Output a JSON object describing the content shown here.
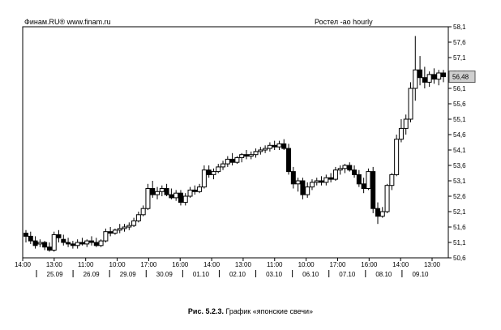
{
  "header": {
    "source": "Финам.RU® www.finam.ru",
    "title": "Ростел -ао hourly"
  },
  "caption": {
    "number": "Рис. 5.2.3.",
    "text": "График «японские свечи»"
  },
  "chart_data": {
    "type": "candlestick",
    "title": "Ростел -ао hourly",
    "ylim": [
      50.6,
      58.1
    ],
    "y_ticks": [
      "58,1",
      "57,6",
      "57,1",
      "56,6",
      "56,1",
      "55,6",
      "55,1",
      "54,6",
      "54,1",
      "53,6",
      "53,1",
      "52,6",
      "52,1",
      "51,6",
      "51,1",
      "50,6"
    ],
    "last_price_label": "56,48",
    "x_time_labels": [
      "14:00",
      "13:00",
      "11:00",
      "10:00",
      "17:00",
      "16:00",
      "14:00",
      "13:00",
      "11:00",
      "10:00",
      "17:00",
      "16:00",
      "14:00",
      "13:00"
    ],
    "x_date_labels": [
      "25.09",
      "26.09",
      "29.09",
      "30.09",
      "01.10",
      "02.10",
      "03.10",
      "06.10",
      "07.10",
      "08.10",
      "09.10"
    ],
    "candles": [
      {
        "o": 51.4,
        "h": 51.5,
        "l": 51.1,
        "c": 51.3
      },
      {
        "o": 51.3,
        "h": 51.45,
        "l": 51.05,
        "c": 51.15
      },
      {
        "o": 51.15,
        "h": 51.3,
        "l": 50.9,
        "c": 51.0
      },
      {
        "o": 51.05,
        "h": 51.2,
        "l": 50.95,
        "c": 51.1
      },
      {
        "o": 51.1,
        "h": 51.15,
        "l": 50.85,
        "c": 50.95
      },
      {
        "o": 50.95,
        "h": 51.1,
        "l": 50.8,
        "c": 50.85
      },
      {
        "o": 50.85,
        "h": 51.45,
        "l": 50.8,
        "c": 51.35
      },
      {
        "o": 51.35,
        "h": 51.5,
        "l": 51.1,
        "c": 51.25
      },
      {
        "o": 51.2,
        "h": 51.35,
        "l": 51.0,
        "c": 51.1
      },
      {
        "o": 51.1,
        "h": 51.25,
        "l": 50.95,
        "c": 51.05
      },
      {
        "o": 51.05,
        "h": 51.15,
        "l": 50.9,
        "c": 51.0
      },
      {
        "o": 51.0,
        "h": 51.2,
        "l": 50.9,
        "c": 51.1
      },
      {
        "o": 51.1,
        "h": 51.25,
        "l": 51.0,
        "c": 51.05
      },
      {
        "o": 51.05,
        "h": 51.2,
        "l": 50.95,
        "c": 51.15
      },
      {
        "o": 51.15,
        "h": 51.3,
        "l": 51.0,
        "c": 51.1
      },
      {
        "o": 51.1,
        "h": 51.25,
        "l": 50.95,
        "c": 51.0
      },
      {
        "o": 51.0,
        "h": 51.2,
        "l": 50.95,
        "c": 51.15
      },
      {
        "o": 51.15,
        "h": 51.55,
        "l": 51.1,
        "c": 51.45
      },
      {
        "o": 51.45,
        "h": 51.6,
        "l": 51.3,
        "c": 51.4
      },
      {
        "o": 51.4,
        "h": 51.55,
        "l": 51.35,
        "c": 51.5
      },
      {
        "o": 51.5,
        "h": 51.7,
        "l": 51.4,
        "c": 51.55
      },
      {
        "o": 51.55,
        "h": 51.7,
        "l": 51.45,
        "c": 51.6
      },
      {
        "o": 51.6,
        "h": 51.75,
        "l": 51.5,
        "c": 51.65
      },
      {
        "o": 51.65,
        "h": 51.9,
        "l": 51.6,
        "c": 51.8
      },
      {
        "o": 51.8,
        "h": 52.1,
        "l": 51.75,
        "c": 52.0
      },
      {
        "o": 52.0,
        "h": 52.3,
        "l": 51.95,
        "c": 52.2
      },
      {
        "o": 52.2,
        "h": 53.0,
        "l": 52.15,
        "c": 52.85
      },
      {
        "o": 52.85,
        "h": 53.1,
        "l": 52.55,
        "c": 52.65
      },
      {
        "o": 52.65,
        "h": 52.9,
        "l": 52.5,
        "c": 52.75
      },
      {
        "o": 52.75,
        "h": 52.95,
        "l": 52.6,
        "c": 52.85
      },
      {
        "o": 52.85,
        "h": 53.0,
        "l": 52.6,
        "c": 52.65
      },
      {
        "o": 52.65,
        "h": 52.85,
        "l": 52.5,
        "c": 52.55
      },
      {
        "o": 52.55,
        "h": 52.8,
        "l": 52.45,
        "c": 52.7
      },
      {
        "o": 52.7,
        "h": 52.8,
        "l": 52.3,
        "c": 52.4
      },
      {
        "o": 52.4,
        "h": 52.7,
        "l": 52.3,
        "c": 52.6
      },
      {
        "o": 52.6,
        "h": 52.9,
        "l": 52.55,
        "c": 52.8
      },
      {
        "o": 52.8,
        "h": 52.95,
        "l": 52.65,
        "c": 52.75
      },
      {
        "o": 52.75,
        "h": 53.0,
        "l": 52.7,
        "c": 52.9
      },
      {
        "o": 52.9,
        "h": 53.6,
        "l": 52.85,
        "c": 53.45
      },
      {
        "o": 53.45,
        "h": 53.6,
        "l": 53.2,
        "c": 53.3
      },
      {
        "o": 53.3,
        "h": 53.5,
        "l": 53.15,
        "c": 53.4
      },
      {
        "o": 53.4,
        "h": 53.65,
        "l": 53.35,
        "c": 53.55
      },
      {
        "o": 53.55,
        "h": 53.75,
        "l": 53.45,
        "c": 53.65
      },
      {
        "o": 53.65,
        "h": 53.9,
        "l": 53.55,
        "c": 53.8
      },
      {
        "o": 53.8,
        "h": 54.0,
        "l": 53.6,
        "c": 53.7
      },
      {
        "o": 53.7,
        "h": 53.9,
        "l": 53.65,
        "c": 53.85
      },
      {
        "o": 53.85,
        "h": 54.0,
        "l": 53.7,
        "c": 53.95
      },
      {
        "o": 53.95,
        "h": 54.1,
        "l": 53.8,
        "c": 53.9
      },
      {
        "o": 53.9,
        "h": 54.05,
        "l": 53.8,
        "c": 53.95
      },
      {
        "o": 53.95,
        "h": 54.15,
        "l": 53.85,
        "c": 54.05
      },
      {
        "o": 54.05,
        "h": 54.2,
        "l": 53.95,
        "c": 54.1
      },
      {
        "o": 54.1,
        "h": 54.25,
        "l": 54.0,
        "c": 54.15
      },
      {
        "o": 54.15,
        "h": 54.35,
        "l": 54.05,
        "c": 54.25
      },
      {
        "o": 54.25,
        "h": 54.4,
        "l": 54.1,
        "c": 54.2
      },
      {
        "o": 54.2,
        "h": 54.4,
        "l": 54.1,
        "c": 54.3
      },
      {
        "o": 54.3,
        "h": 54.45,
        "l": 54.1,
        "c": 54.15
      },
      {
        "o": 54.15,
        "h": 54.3,
        "l": 53.3,
        "c": 53.4
      },
      {
        "o": 53.4,
        "h": 53.55,
        "l": 52.85,
        "c": 53.0
      },
      {
        "o": 53.0,
        "h": 53.2,
        "l": 52.75,
        "c": 53.1
      },
      {
        "o": 53.1,
        "h": 53.2,
        "l": 52.5,
        "c": 52.65
      },
      {
        "o": 52.65,
        "h": 53.05,
        "l": 52.55,
        "c": 52.9
      },
      {
        "o": 52.9,
        "h": 53.15,
        "l": 52.8,
        "c": 53.05
      },
      {
        "o": 53.05,
        "h": 53.2,
        "l": 52.95,
        "c": 53.1
      },
      {
        "o": 53.1,
        "h": 53.25,
        "l": 52.95,
        "c": 53.05
      },
      {
        "o": 53.05,
        "h": 53.3,
        "l": 52.95,
        "c": 53.2
      },
      {
        "o": 53.2,
        "h": 53.35,
        "l": 53.05,
        "c": 53.15
      },
      {
        "o": 53.15,
        "h": 53.55,
        "l": 53.1,
        "c": 53.45
      },
      {
        "o": 53.45,
        "h": 53.6,
        "l": 53.3,
        "c": 53.5
      },
      {
        "o": 53.5,
        "h": 53.65,
        "l": 53.35,
        "c": 53.6
      },
      {
        "o": 53.6,
        "h": 53.7,
        "l": 53.4,
        "c": 53.45
      },
      {
        "o": 53.45,
        "h": 53.6,
        "l": 53.2,
        "c": 53.3
      },
      {
        "o": 53.3,
        "h": 53.45,
        "l": 52.9,
        "c": 53.0
      },
      {
        "o": 53.0,
        "h": 53.2,
        "l": 52.7,
        "c": 52.85
      },
      {
        "o": 52.85,
        "h": 53.5,
        "l": 52.8,
        "c": 53.4
      },
      {
        "o": 53.4,
        "h": 53.55,
        "l": 52.05,
        "c": 52.2
      },
      {
        "o": 52.2,
        "h": 52.4,
        "l": 51.7,
        "c": 51.95
      },
      {
        "o": 51.95,
        "h": 52.25,
        "l": 51.9,
        "c": 52.1
      },
      {
        "o": 52.1,
        "h": 53.0,
        "l": 52.05,
        "c": 52.95
      },
      {
        "o": 52.95,
        "h": 53.35,
        "l": 52.8,
        "c": 53.3
      },
      {
        "o": 53.3,
        "h": 54.6,
        "l": 53.25,
        "c": 54.45
      },
      {
        "o": 54.45,
        "h": 55.1,
        "l": 54.35,
        "c": 54.8
      },
      {
        "o": 54.8,
        "h": 55.25,
        "l": 54.6,
        "c": 55.1
      },
      {
        "o": 55.1,
        "h": 56.3,
        "l": 55.0,
        "c": 56.1
      },
      {
        "o": 56.1,
        "h": 57.8,
        "l": 55.7,
        "c": 56.7
      },
      {
        "o": 56.7,
        "h": 57.15,
        "l": 56.2,
        "c": 56.45
      },
      {
        "o": 56.45,
        "h": 56.8,
        "l": 56.1,
        "c": 56.3
      },
      {
        "o": 56.3,
        "h": 56.65,
        "l": 56.15,
        "c": 56.55
      },
      {
        "o": 56.55,
        "h": 56.75,
        "l": 56.25,
        "c": 56.4
      },
      {
        "o": 56.4,
        "h": 56.7,
        "l": 56.2,
        "c": 56.6
      },
      {
        "o": 56.6,
        "h": 56.7,
        "l": 56.3,
        "c": 56.48
      }
    ]
  }
}
